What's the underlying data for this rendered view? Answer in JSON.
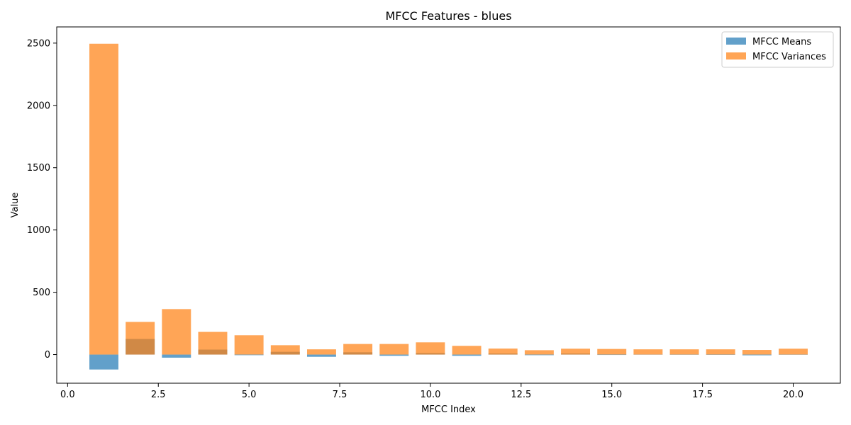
{
  "chart_data": {
    "type": "bar",
    "title": "MFCC Features - blues",
    "xlabel": "MFCC Index",
    "ylabel": "Value",
    "xlim": [
      -0.3,
      21.3
    ],
    "ylim": [
      -230,
      2630
    ],
    "xticks": [
      0.0,
      2.5,
      5.0,
      7.5,
      10.0,
      12.5,
      15.0,
      17.5,
      20.0
    ],
    "xtick_labels": [
      "0.0",
      "2.5",
      "5.0",
      "7.5",
      "10.0",
      "12.5",
      "15.0",
      "17.5",
      "20.0"
    ],
    "yticks": [
      0,
      500,
      1000,
      1500,
      2000,
      2500
    ],
    "ytick_labels": [
      "0",
      "500",
      "1000",
      "1500",
      "2000",
      "2500"
    ],
    "x": [
      1,
      2,
      3,
      4,
      5,
      6,
      7,
      8,
      9,
      10,
      11,
      12,
      13,
      14,
      15,
      16,
      17,
      18,
      19,
      20
    ],
    "bar_width": 0.8,
    "series": [
      {
        "name": "MFCC Means",
        "color": "#1f77b4",
        "opacity": 0.7,
        "values": [
          -120,
          125,
          -25,
          40,
          -5,
          22,
          -18,
          18,
          -10,
          12,
          -10,
          8,
          -5,
          8,
          -3,
          3,
          2,
          1,
          -6,
          2
        ]
      },
      {
        "name": "MFCC Variances",
        "color": "#ff7f0e",
        "opacity": 0.7,
        "values": [
          2495,
          262,
          365,
          182,
          155,
          75,
          42,
          85,
          85,
          98,
          70,
          48,
          35,
          47,
          45,
          42,
          42,
          42,
          37,
          47
        ]
      }
    ],
    "legend_position": "top-right",
    "grid": false
  }
}
